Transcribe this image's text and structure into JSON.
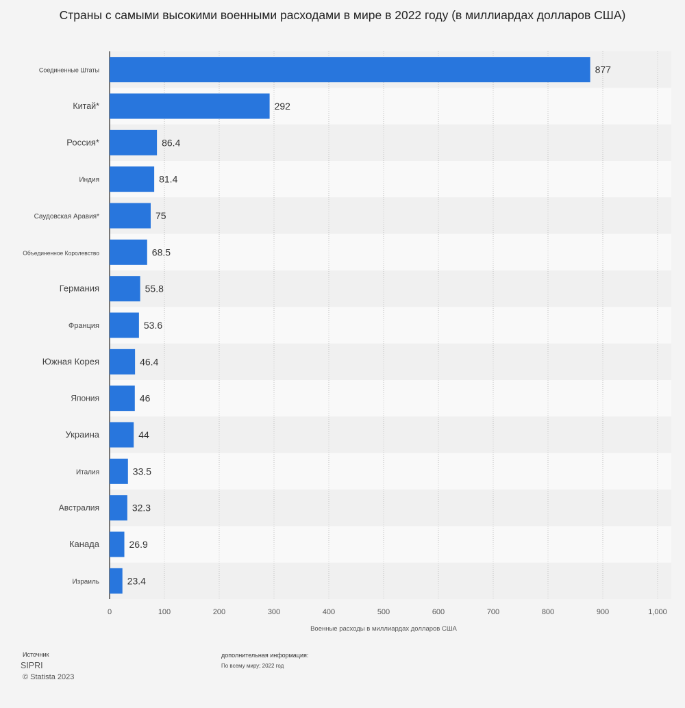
{
  "chart_data": {
    "type": "bar",
    "orientation": "horizontal",
    "title": "Страны с самыми высокими военными расходами в мире в 2022 году (в миллиардах долларов США)",
    "xlabel": "Военные расходы в миллиардах долларов США",
    "ylabel": "",
    "categories": [
      "Соединенные Штаты",
      "Китай*",
      "Россия*",
      "Индия",
      "Саудовская Аравия*",
      "Объединенное Королевство",
      "Германия",
      "Франция",
      "Южная Корея",
      "Япония",
      "Украина",
      "Италия",
      "Австралия",
      "Канада",
      "Израиль"
    ],
    "values": [
      877,
      292,
      86.4,
      81.4,
      75,
      68.5,
      55.8,
      53.6,
      46.4,
      46,
      44,
      33.5,
      32.3,
      26.9,
      23.4
    ],
    "value_labels": [
      "877",
      "292",
      "86.4",
      "81.4",
      "75",
      "68.5",
      "55.8",
      "53.6",
      "46.4",
      "46",
      "44",
      "33.5",
      "32.3",
      "26.9",
      "23.4"
    ],
    "xlim": [
      0,
      1000
    ],
    "xticks": [
      0,
      100,
      200,
      300,
      400,
      500,
      600,
      700,
      800,
      900,
      1000
    ],
    "xtick_labels": [
      "0",
      "100",
      "200",
      "300",
      "400",
      "500",
      "600",
      "700",
      "800",
      "900",
      "1,000"
    ],
    "grid": true,
    "bar_color": "#2876dd"
  },
  "footer": {
    "source_label": "Источник",
    "source_value": "SIPRI",
    "copyright": "© Statista 2023",
    "additional_info_label": "дополнительная информация:",
    "additional_info_value": "По всему миру; 2022 год"
  }
}
